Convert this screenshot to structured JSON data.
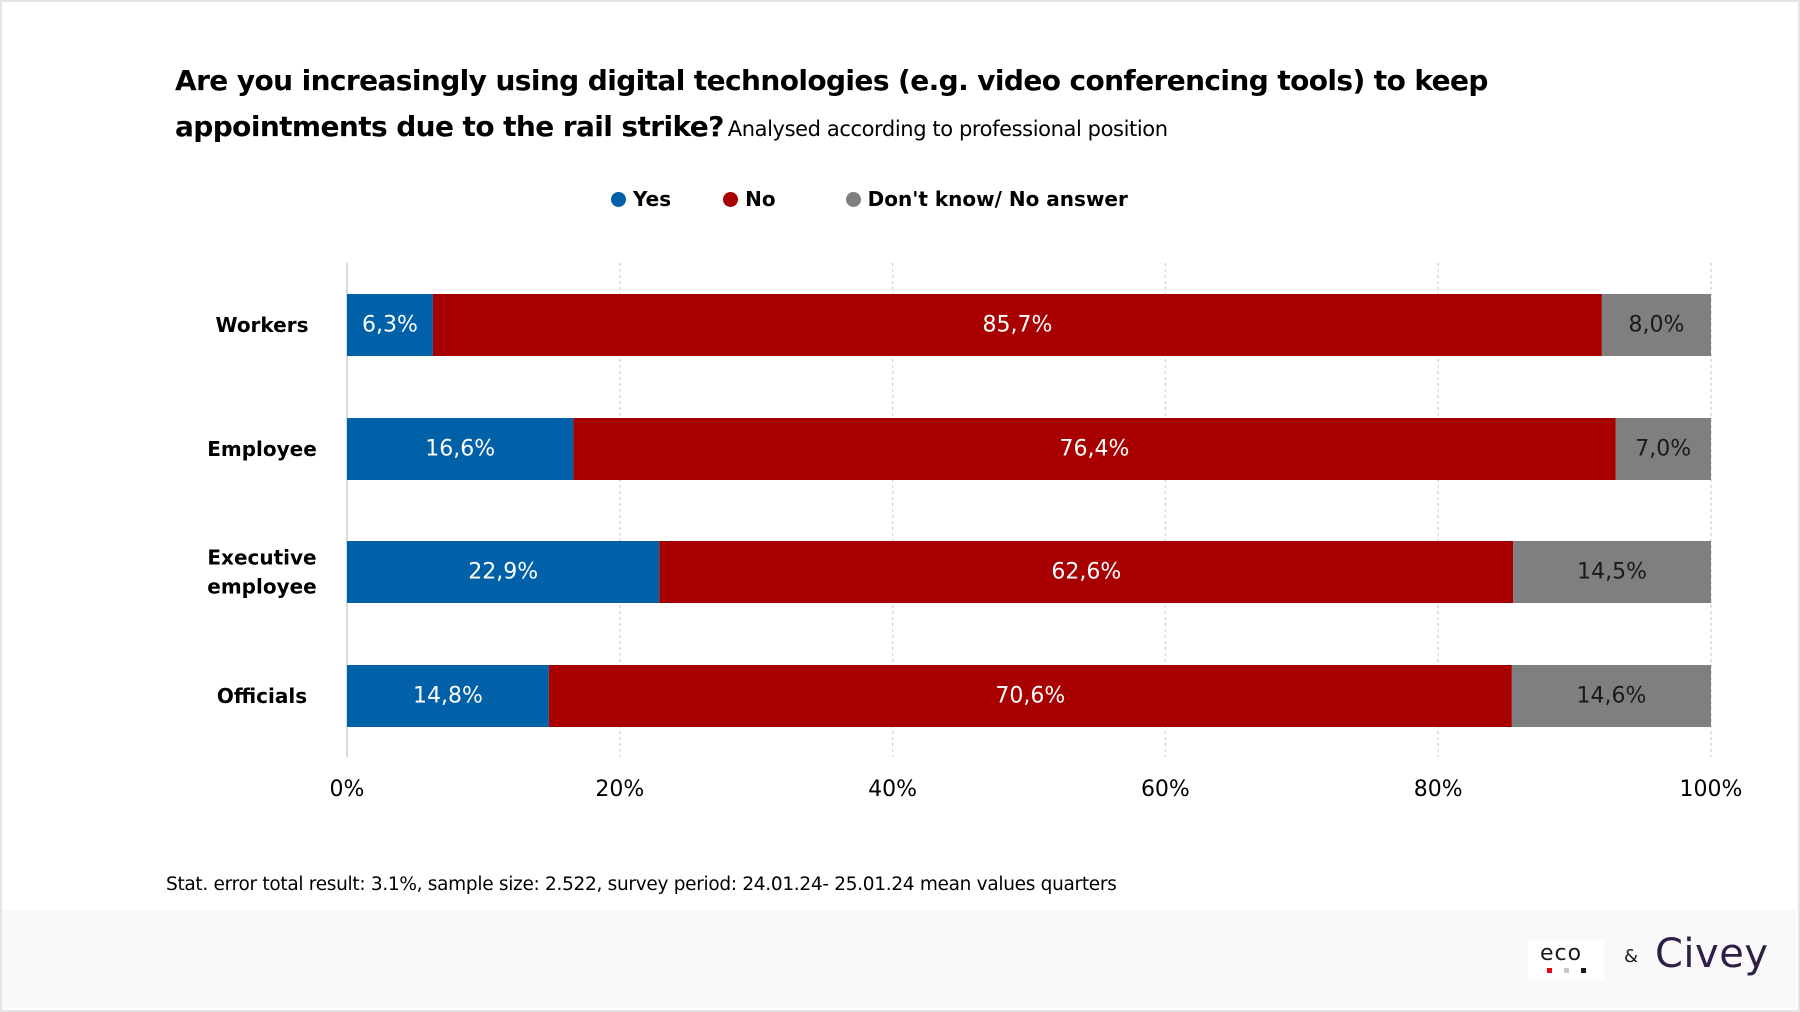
{
  "header": {
    "title": "Are you increasingly using digital technologies (e.g. video conferencing tools) to keep appointments due to the rail strike?",
    "subtitle": "Analysed according to professional position"
  },
  "legend": {
    "items": [
      {
        "key": "yes",
        "label": "Yes",
        "color": "#0060a8"
      },
      {
        "key": "no",
        "label": "No",
        "color": "#a80000"
      },
      {
        "key": "dk",
        "label": "Don't know/ No answer",
        "color": "#7f7f7f"
      }
    ]
  },
  "chart_data": {
    "type": "bar",
    "orientation": "horizontal",
    "stacked": true,
    "title": "Are you increasingly using digital technologies (e.g. video conferencing tools) to keep appointments due to the rail strike?",
    "subtitle": "Analysed according to professional position",
    "categories": [
      "Workers",
      "Employee",
      "Executive employee",
      "Officials"
    ],
    "category_lines": [
      [
        "Workers"
      ],
      [
        "Employee"
      ],
      [
        "Executive",
        "employee"
      ],
      [
        "Officials"
      ]
    ],
    "series": [
      {
        "name": "Yes",
        "color": "#0060a8",
        "label_color": "#ffffff",
        "values": [
          6.3,
          16.6,
          22.9,
          14.8
        ],
        "labels": [
          "6,3%",
          "16,6%",
          "22,9%",
          "14,8%"
        ]
      },
      {
        "name": "No",
        "color": "#a80000",
        "label_color": "#ffffff",
        "values": [
          85.7,
          76.4,
          62.6,
          70.6
        ],
        "labels": [
          "85,7%",
          "76,4%",
          "62,6%",
          "70,6%"
        ]
      },
      {
        "name": "Don't know/ No answer",
        "color": "#7f7f7f",
        "label_color": "#1a1a1a",
        "values": [
          8.0,
          7.0,
          14.5,
          14.6
        ],
        "labels": [
          "8,0%",
          "7,0%",
          "14,5%",
          "14,6%"
        ]
      }
    ],
    "xlim": [
      0,
      100
    ],
    "xticks": [
      0,
      20,
      40,
      60,
      80,
      100
    ],
    "xtick_labels": [
      "0%",
      "20%",
      "40%",
      "60%",
      "80%",
      "100%"
    ],
    "xlabel": "",
    "ylabel": "",
    "grid": "vertical dotted",
    "legend_position": "top-center"
  },
  "footnote": "Stat. error total result: 3.1%, sample size: 2.522, survey period: 24.01.24- 25.01.24 mean values quarters",
  "branding": {
    "eco_text": "eco",
    "eco_dot_colors": [
      "#e30613",
      "#c8c8c8",
      "#1a1a1a"
    ],
    "ampersand": "&",
    "civey_text": "Civey",
    "civey_color": "#2e1f47"
  }
}
